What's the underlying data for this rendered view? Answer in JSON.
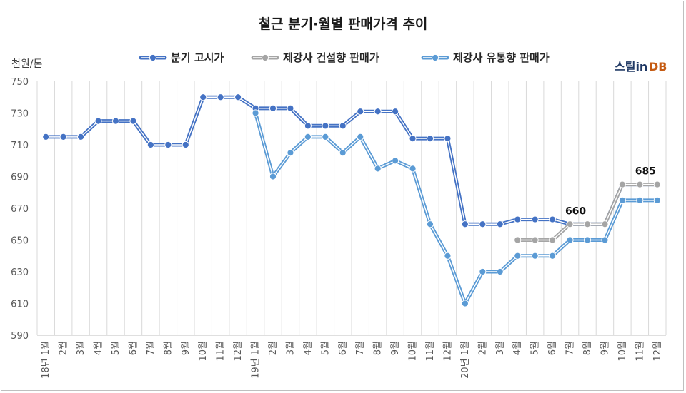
{
  "chart_data": {
    "type": "line",
    "title": "철근 분기·월별 판매가격 추이",
    "ylabel": "천원/톤",
    "ylim": [
      590,
      750
    ],
    "yticks": [
      590,
      610,
      630,
      650,
      670,
      690,
      710,
      730,
      750
    ],
    "categories": [
      "18년 1월",
      "2월",
      "3월",
      "4월",
      "5월",
      "6월",
      "7월",
      "8월",
      "9월",
      "10월",
      "11월",
      "12월",
      "19년 1월",
      "2월",
      "3월",
      "4월",
      "5월",
      "6월",
      "7월",
      "8월",
      "9월",
      "10월",
      "11월",
      "12월",
      "20년 1월",
      "2월",
      "3월",
      "4월",
      "5월",
      "6월",
      "7월",
      "8월",
      "9월",
      "10월",
      "11월",
      "12월"
    ],
    "legend_position": "top",
    "grid": "vertical",
    "series": [
      {
        "name": "분기 고시가",
        "color": "#4472c4",
        "values": [
          715,
          715,
          715,
          725,
          725,
          725,
          710,
          710,
          710,
          740,
          740,
          740,
          733,
          733,
          733,
          722,
          722,
          722,
          731,
          731,
          731,
          714,
          714,
          714,
          660,
          660,
          660,
          663,
          663,
          663,
          660,
          660,
          660,
          685,
          685,
          685
        ]
      },
      {
        "name": "제강사 건설향 판매가",
        "color": "#a5a5a5",
        "values": [
          null,
          null,
          null,
          null,
          null,
          null,
          null,
          null,
          null,
          null,
          null,
          null,
          null,
          null,
          null,
          null,
          null,
          null,
          null,
          null,
          null,
          null,
          null,
          null,
          null,
          null,
          null,
          650,
          650,
          650,
          660,
          660,
          660,
          685,
          685,
          685
        ]
      },
      {
        "name": "제강사 유통향 판매가",
        "color": "#5b9bd5",
        "values": [
          null,
          null,
          null,
          null,
          null,
          null,
          null,
          null,
          null,
          null,
          null,
          null,
          730,
          690,
          705,
          715,
          715,
          705,
          715,
          695,
          700,
          695,
          660,
          640,
          610,
          630,
          630,
          640,
          640,
          640,
          650,
          650,
          650,
          675,
          675,
          675
        ]
      }
    ],
    "annotations": [
      {
        "text": "660",
        "category_index": 30,
        "value": 660
      },
      {
        "text": "685",
        "category_index": 34,
        "value": 685
      }
    ]
  },
  "logo": {
    "main": "스틸in",
    "db": "DB"
  }
}
